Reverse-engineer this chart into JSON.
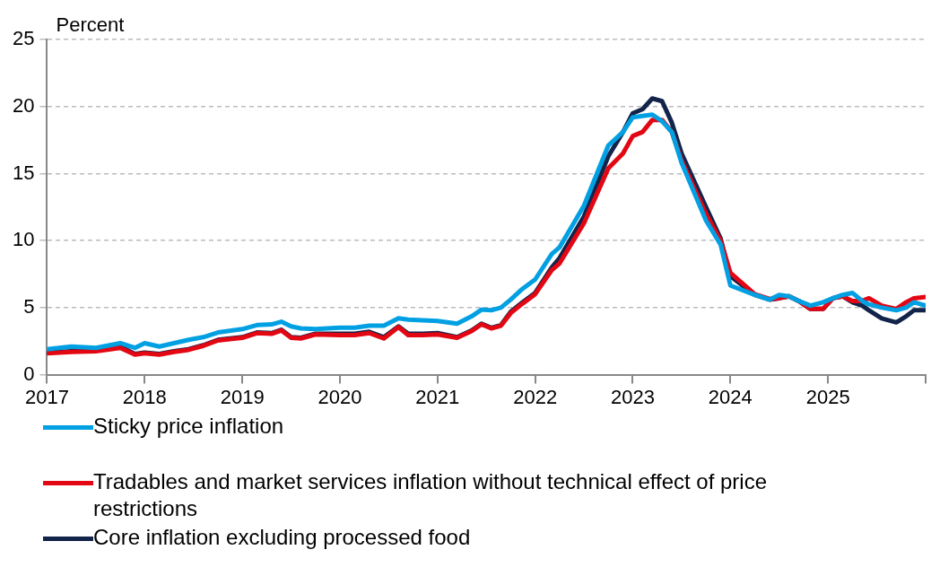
{
  "chart_data": {
    "type": "line",
    "ylabel": "Percent",
    "x": [
      2017.0,
      2017.25,
      2017.5,
      2017.75,
      2017.9,
      2018.0,
      2018.15,
      2018.3,
      2018.45,
      2018.6,
      2018.75,
      2019.0,
      2019.15,
      2019.3,
      2019.4,
      2019.5,
      2019.6,
      2019.75,
      2020.0,
      2020.15,
      2020.3,
      2020.45,
      2020.6,
      2020.7,
      2020.85,
      2021.0,
      2021.2,
      2021.35,
      2021.45,
      2021.55,
      2021.65,
      2021.75,
      2021.87,
      2022.0,
      2022.17,
      2022.25,
      2022.5,
      2022.75,
      2022.9,
      2023.0,
      2023.1,
      2023.2,
      2023.3,
      2023.4,
      2023.5,
      2023.75,
      2023.9,
      2024.0,
      2024.25,
      2024.4,
      2024.5,
      2024.6,
      2024.7,
      2024.82,
      2024.95,
      2025.05,
      2025.15,
      2025.25,
      2025.35,
      2025.42,
      2025.55,
      2025.7,
      2025.8,
      2025.88,
      2026.0
    ],
    "series": [
      {
        "name": "Sticky price inflation",
        "color": "#00a0e3",
        "values": [
          1.9,
          2.1,
          2.0,
          2.35,
          2.0,
          2.35,
          2.1,
          2.35,
          2.6,
          2.8,
          3.15,
          3.4,
          3.7,
          3.75,
          3.95,
          3.6,
          3.45,
          3.4,
          3.5,
          3.5,
          3.65,
          3.65,
          4.2,
          4.1,
          4.05,
          4.0,
          3.8,
          4.35,
          4.85,
          4.8,
          5.0,
          5.6,
          6.4,
          7.1,
          9.0,
          9.5,
          12.6,
          17.1,
          18.1,
          19.2,
          19.3,
          19.4,
          18.9,
          18.1,
          15.8,
          11.5,
          9.7,
          6.65,
          5.95,
          5.6,
          5.95,
          5.85,
          5.5,
          5.15,
          5.4,
          5.7,
          5.95,
          6.1,
          5.5,
          5.25,
          5.0,
          4.8,
          5.0,
          5.4,
          5.15
        ]
      },
      {
        "name": "Tradables and market services inflation without technical effect of price restrictions",
        "color": "#e30613",
        "values": [
          1.6,
          1.7,
          1.75,
          2.0,
          1.5,
          1.6,
          1.5,
          1.7,
          1.85,
          2.15,
          2.55,
          2.75,
          3.1,
          3.05,
          3.3,
          2.75,
          2.7,
          3.0,
          2.95,
          2.95,
          3.1,
          2.7,
          3.55,
          2.95,
          2.95,
          3.0,
          2.75,
          3.25,
          3.75,
          3.45,
          3.65,
          4.6,
          5.3,
          6.0,
          7.8,
          8.3,
          11.3,
          15.4,
          16.5,
          17.8,
          18.1,
          19.0,
          19.0,
          18.1,
          16.0,
          12.0,
          10.0,
          7.6,
          6.0,
          5.65,
          5.7,
          5.85,
          5.5,
          4.9,
          4.9,
          5.7,
          5.85,
          5.5,
          5.5,
          5.7,
          5.15,
          4.9,
          5.4,
          5.7,
          5.8
        ]
      },
      {
        "name": "Core inflation excluding processed food",
        "color": "#13244a",
        "values": [
          1.65,
          1.75,
          1.8,
          2.1,
          1.55,
          1.65,
          1.55,
          1.75,
          1.9,
          2.2,
          2.6,
          2.8,
          3.15,
          3.1,
          3.35,
          2.8,
          2.75,
          3.05,
          3.05,
          3.05,
          3.2,
          2.8,
          3.6,
          3.05,
          3.05,
          3.1,
          2.8,
          3.3,
          3.8,
          3.5,
          3.7,
          4.7,
          5.4,
          6.1,
          8.0,
          8.7,
          11.8,
          16.3,
          18.1,
          19.5,
          19.8,
          20.6,
          20.4,
          18.8,
          16.5,
          12.5,
          10.15,
          7.35,
          5.95,
          5.6,
          5.7,
          5.85,
          5.5,
          4.9,
          4.9,
          5.7,
          5.85,
          5.4,
          5.15,
          4.8,
          4.2,
          3.9,
          4.35,
          4.8,
          4.8
        ]
      }
    ],
    "xlim": [
      2017,
      2026
    ],
    "xticks": [
      2017,
      2018,
      2019,
      2020,
      2021,
      2022,
      2023,
      2024,
      2025,
      {
        "value": 2026,
        "label": null
      }
    ],
    "ylim": [
      0,
      25
    ],
    "yticks": [
      0,
      5,
      10,
      15,
      20,
      25
    ],
    "grid": "y",
    "legend": "bottom",
    "marker": "none",
    "line_style": "solid"
  }
}
